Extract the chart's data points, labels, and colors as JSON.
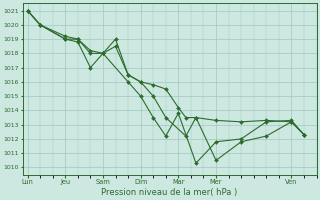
{
  "title": "",
  "xlabel": "Pression niveau de la mer( hPa )",
  "ylabel": "",
  "bg_color": "#cce8e0",
  "line_color": "#2d6b2d",
  "grid_color": "#a0c8be",
  "ylim": [
    1009.5,
    1021.5
  ],
  "yticks": [
    1010,
    1011,
    1012,
    1013,
    1014,
    1015,
    1016,
    1017,
    1018,
    1019,
    1020,
    1021
  ],
  "xtick_labels": [
    "Lun",
    "Jeu",
    "Sam",
    "Dim",
    "Mar",
    "Mer",
    "Ven"
  ],
  "xtick_positions": [
    0,
    1.5,
    3,
    4.5,
    6,
    7.5,
    10.5
  ],
  "xlim": [
    -0.2,
    11.5
  ],
  "series": [
    {
      "x": [
        0,
        0.5,
        1.5,
        2.0,
        2.5,
        3.0,
        3.5,
        4.0,
        4.5,
        5.0,
        5.5,
        6.0,
        6.3,
        6.7,
        7.5,
        8.5,
        9.5,
        10.5,
        11.0
      ],
      "y": [
        1021,
        1020,
        1019,
        1019,
        1018.2,
        1018,
        1018.5,
        1016.5,
        1016.0,
        1015.8,
        1015.5,
        1014.2,
        1013.5,
        1013.5,
        1013.3,
        1013.2,
        1013.3,
        1013.2,
        1012.3
      ]
    },
    {
      "x": [
        0,
        0.5,
        1.5,
        2.0,
        2.5,
        3.0,
        3.5,
        4.0,
        4.5,
        5.0,
        5.5,
        6.3,
        6.7,
        7.5,
        8.5,
        9.5,
        10.5,
        11.0
      ],
      "y": [
        1021,
        1020,
        1019.2,
        1019,
        1018.0,
        1018.0,
        1019.0,
        1016.5,
        1016.0,
        1015.0,
        1013.5,
        1012.2,
        1013.5,
        1010.5,
        1011.8,
        1012.2,
        1013.2,
        1012.3
      ]
    },
    {
      "x": [
        0,
        0.5,
        1.5,
        2.0,
        2.5,
        3.0,
        4.0,
        4.5,
        5.0,
        5.5,
        6.0,
        6.7,
        7.5,
        8.5,
        9.5,
        10.5,
        11.0
      ],
      "y": [
        1021,
        1020,
        1019,
        1018.8,
        1017.0,
        1018,
        1016.0,
        1015.0,
        1013.5,
        1012.2,
        1013.8,
        1010.3,
        1011.8,
        1012.0,
        1013.2,
        1013.3,
        1012.3
      ]
    }
  ]
}
